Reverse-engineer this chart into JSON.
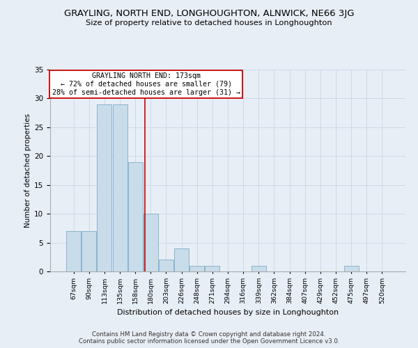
{
  "title": "GRAYLING, NORTH END, LONGHOUGHTON, ALNWICK, NE66 3JG",
  "subtitle": "Size of property relative to detached houses in Longhoughton",
  "xlabel": "Distribution of detached houses by size in Longhoughton",
  "ylabel": "Number of detached properties",
  "footer_line1": "Contains HM Land Registry data © Crown copyright and database right 2024.",
  "footer_line2": "Contains public sector information licensed under the Open Government Licence v3.0.",
  "categories": [
    "67sqm",
    "90sqm",
    "113sqm",
    "135sqm",
    "158sqm",
    "180sqm",
    "203sqm",
    "226sqm",
    "248sqm",
    "271sqm",
    "294sqm",
    "316sqm",
    "339sqm",
    "362sqm",
    "384sqm",
    "407sqm",
    "429sqm",
    "452sqm",
    "475sqm",
    "497sqm",
    "520sqm"
  ],
  "values": [
    7,
    7,
    29,
    29,
    19,
    10,
    2,
    4,
    1,
    1,
    0,
    0,
    1,
    0,
    0,
    0,
    0,
    0,
    1,
    0,
    0
  ],
  "bar_color": "#c9dcea",
  "bar_edge_color": "#8ab4cc",
  "grid_color": "#cdd8e8",
  "background_color": "#e8eef6",
  "vline_x": 4.62,
  "vline_color": "#cc0000",
  "annotation_text": "GRAYLING NORTH END: 173sqm\n← 72% of detached houses are smaller (79)\n28% of semi-detached houses are larger (31) →",
  "annotation_box_color": "#ffffff",
  "annotation_box_edge_color": "#cc0000",
  "ylim": [
    0,
    35
  ],
  "yticks": [
    0,
    5,
    10,
    15,
    20,
    25,
    30,
    35
  ]
}
